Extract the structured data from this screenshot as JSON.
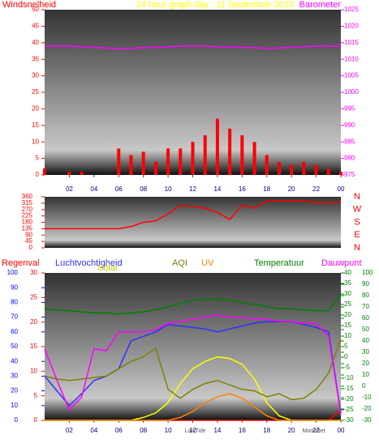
{
  "chart_data": [
    {
      "type": "combo",
      "title": "24 hour graph day : 11 September 2023",
      "x": [
        0,
        1,
        2,
        3,
        4,
        5,
        6,
        7,
        8,
        9,
        10,
        11,
        12,
        13,
        14,
        15,
        16,
        17,
        18,
        19,
        20,
        21,
        22,
        23,
        24
      ],
      "xlim": [
        0,
        24
      ],
      "xticks": [
        {
          "value": 2,
          "label": "02"
        },
        {
          "value": 4,
          "label": "04"
        },
        {
          "value": 6,
          "label": "06"
        },
        {
          "value": 8,
          "label": "08"
        },
        10,
        12,
        14,
        16,
        18,
        20,
        22,
        {
          "value": 24,
          "label": "00"
        }
      ],
      "ylim": [
        0,
        50
      ],
      "yticks": [
        0,
        5,
        10,
        15,
        20,
        25,
        30,
        35,
        40,
        45,
        50
      ],
      "y2lim": [
        975,
        1025
      ],
      "y2ticks": [
        975,
        980,
        985,
        990,
        995,
        1000,
        1005,
        1010,
        1015,
        1020,
        1025
      ],
      "axis_colors": {
        "y": "#ff0000",
        "y2": "#ff00ff"
      },
      "series": [
        {
          "name": "Windsnelheid",
          "type": "bar",
          "axis": "y",
          "color": "#ff0000",
          "values": [
            2,
            0,
            1,
            1,
            0,
            0,
            8,
            6,
            7,
            4,
            8,
            8,
            10,
            12,
            17,
            14,
            12,
            10,
            6,
            4,
            3,
            4,
            3,
            2,
            1
          ]
        },
        {
          "name": "Barometer",
          "type": "line",
          "axis": "y2",
          "color": "#ff00ff",
          "values": [
            1014,
            1014,
            1014,
            1013.8,
            1013.6,
            1013.4,
            1013.2,
            1013.3,
            1013.5,
            1013.6,
            1013.8,
            1014,
            1014,
            1014,
            1013.8,
            1013.7,
            1013.6,
            1013.5,
            1013.3,
            1013.4,
            1013.6,
            1013.8,
            1014,
            1014,
            1013.9
          ]
        }
      ]
    },
    {
      "type": "combo",
      "x": [
        0,
        1,
        2,
        3,
        4,
        5,
        6,
        7,
        8,
        9,
        10,
        11,
        12,
        13,
        14,
        15,
        16,
        17,
        18,
        19,
        20,
        21,
        22,
        23,
        24
      ],
      "xlim": [
        0,
        24
      ],
      "ylim": [
        0,
        360
      ],
      "yticks": [
        0,
        45,
        90,
        135,
        180,
        225,
        270,
        315,
        360
      ],
      "compass": [
        "N",
        "W",
        "S",
        "E",
        "N"
      ],
      "axis_colors": {
        "y": "#ff0000"
      },
      "series": [
        {
          "type": "line",
          "axis": "y",
          "color": "#ff0000",
          "values": [
            135,
            135,
            135,
            135,
            135,
            135,
            135,
            150,
            180,
            190,
            240,
            300,
            290,
            280,
            250,
            200,
            300,
            280,
            330,
            330,
            330,
            330,
            320,
            320,
            325
          ]
        }
      ]
    },
    {
      "type": "combo",
      "x": [
        0,
        1,
        2,
        3,
        4,
        5,
        6,
        7,
        8,
        9,
        10,
        11,
        12,
        13,
        14,
        15,
        16,
        17,
        18,
        19,
        20,
        21,
        22,
        23,
        24
      ],
      "xlim": [
        0,
        24
      ],
      "xticks": [
        {
          "value": 2,
          "label": "02"
        },
        {
          "value": 4,
          "label": "04"
        },
        {
          "value": 6,
          "label": "06"
        },
        {
          "value": 8,
          "label": "08"
        },
        10,
        12,
        14,
        16,
        18,
        20,
        22,
        {
          "value": 24,
          "label": "00"
        }
      ],
      "ylim": [
        0,
        100
      ],
      "yticks": [
        0,
        10,
        20,
        30,
        40,
        50,
        60,
        70,
        80,
        90,
        100
      ],
      "y2lim": [
        0,
        30
      ],
      "y2ticks": [
        0,
        5,
        10,
        15,
        20,
        25,
        30
      ],
      "y3lim": [
        -30,
        40
      ],
      "y3ticks": [
        -30,
        -25,
        -20,
        -15,
        -10,
        -5,
        0,
        5,
        10,
        15,
        20,
        25,
        30,
        35,
        40
      ],
      "y4lim": [
        -30,
        100
      ],
      "y4ticks": [
        -30,
        -20,
        -10,
        0,
        10,
        20,
        30,
        40,
        50,
        60,
        70,
        80,
        90,
        100
      ],
      "axis_colors": {
        "y": "#0000ff",
        "y2": "#ff0000",
        "y3": "#008000",
        "y4": "#008000"
      },
      "annotations": [
        {
          "text": "LowTide",
          "x": 12.2
        },
        {
          "text": "MoonSet",
          "x": 21.8
        }
      ],
      "series": [
        {
          "name": "Regenval",
          "type": "line",
          "axis": "y2",
          "color": "#ff0000",
          "values": [
            0,
            0,
            0,
            0,
            0,
            0,
            0,
            0,
            0,
            0,
            0,
            0,
            0,
            0,
            0,
            0,
            0,
            0,
            0,
            0,
            0,
            0,
            0,
            0,
            2
          ]
        },
        {
          "name": "Luchtvochtigheid",
          "type": "line",
          "axis": "y",
          "color": "#3030ff",
          "values": [
            30,
            20,
            10,
            18,
            27,
            30,
            35,
            54,
            57,
            60,
            65,
            64,
            63,
            62,
            60,
            62,
            64,
            66,
            67,
            67,
            67,
            65,
            63,
            60,
            5
          ]
        },
        {
          "name": "Solar",
          "type": "line",
          "axis": "y",
          "color": "#ffff00",
          "values": [
            0,
            0,
            0,
            0,
            0,
            0,
            0,
            0,
            2,
            5,
            12,
            25,
            35,
            40,
            43,
            42,
            38,
            28,
            12,
            3,
            0,
            0,
            0,
            0,
            0
          ]
        },
        {
          "name": "AQI",
          "type": "line",
          "axis": "y",
          "color": "#808000",
          "values": [
            30,
            28,
            27,
            28,
            29,
            30,
            35,
            40,
            43,
            49,
            21,
            15,
            21,
            25,
            27,
            24,
            21,
            20,
            16,
            18,
            14,
            15,
            21,
            32,
            55
          ]
        },
        {
          "name": "UV",
          "type": "line",
          "axis": "y",
          "color": "#ff8000",
          "values": [
            0,
            0,
            0,
            0,
            0,
            0,
            0,
            0,
            0,
            0,
            0,
            2,
            6,
            12,
            16,
            18,
            15,
            9,
            3,
            0,
            0,
            0,
            0,
            0,
            0
          ]
        },
        {
          "name": "Temperatuur",
          "type": "line",
          "axis": "y3",
          "color": "#008000",
          "values": [
            23,
            22.5,
            22,
            21.5,
            21,
            21,
            20.5,
            21,
            21.5,
            22.5,
            24,
            25.5,
            27,
            27.5,
            27.5,
            27,
            26,
            25,
            24,
            23,
            23,
            22.5,
            22,
            22,
            30
          ]
        },
        {
          "name": "Dauwpunt",
          "type": "line",
          "axis": "y3",
          "color": "#ff00ff",
          "values": [
            4,
            -11,
            -25,
            -19,
            4,
            3,
            12,
            12,
            12,
            13,
            16,
            17,
            18,
            19,
            20,
            19,
            19,
            18,
            18,
            17,
            17,
            16,
            16,
            10,
            -27
          ]
        }
      ]
    }
  ]
}
